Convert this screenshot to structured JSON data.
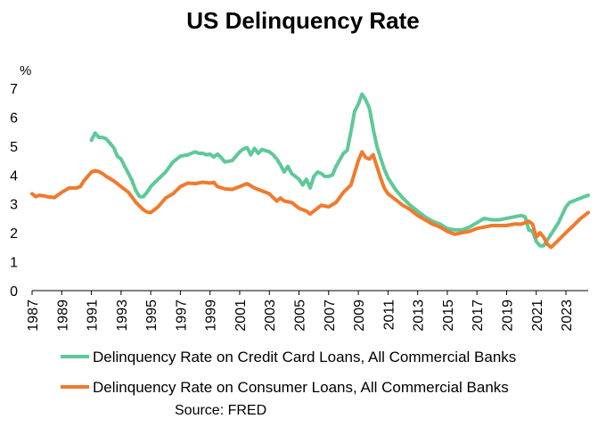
{
  "chart_data": {
    "type": "line",
    "title": "US Delinquency Rate",
    "ylabel": "%",
    "xlabel": "",
    "ylim": [
      0,
      7
    ],
    "xlim": [
      1987,
      2024.5
    ],
    "yticks": [
      "0",
      "1",
      "2",
      "3",
      "4",
      "5",
      "6",
      "7"
    ],
    "xticks": [
      "1987",
      "1989",
      "1991",
      "1993",
      "1995",
      "1997",
      "1999",
      "2001",
      "2003",
      "2005",
      "2007",
      "2009",
      "2011",
      "2013",
      "2015",
      "2017",
      "2019",
      "2021",
      "2023"
    ],
    "grid": false,
    "legend_position": "bottom",
    "series": [
      {
        "name": "Delinquency Rate on Credit Card Loans, All Commercial Banks",
        "color": "#5ec998",
        "x": [
          1991.0,
          1991.25,
          1991.5,
          1991.75,
          1992.0,
          1992.25,
          1992.5,
          1992.75,
          1993.0,
          1993.25,
          1993.5,
          1993.75,
          1994.0,
          1994.25,
          1994.5,
          1994.75,
          1995.0,
          1995.5,
          1996.0,
          1996.5,
          1997.0,
          1997.5,
          1998.0,
          1998.25,
          1998.5,
          1998.75,
          1999.0,
          1999.25,
          1999.5,
          1999.75,
          2000.0,
          2000.5,
          2001.0,
          2001.25,
          2001.5,
          2001.75,
          2002.0,
          2002.25,
          2002.5,
          2003.0,
          2003.25,
          2003.5,
          2003.75,
          2004.0,
          2004.25,
          2004.5,
          2004.75,
          2005.0,
          2005.25,
          2005.5,
          2005.75,
          2006.0,
          2006.25,
          2006.5,
          2006.75,
          2007.0,
          2007.25,
          2007.5,
          2008.0,
          2008.25,
          2008.5,
          2008.75,
          2009.0,
          2009.25,
          2009.5,
          2009.75,
          2010.0,
          2010.25,
          2010.5,
          2010.75,
          2011.0,
          2011.5,
          2012.0,
          2012.5,
          2013.0,
          2013.5,
          2014.0,
          2014.5,
          2015.0,
          2015.5,
          2016.0,
          2016.5,
          2017.0,
          2017.5,
          2018.0,
          2018.5,
          2019.0,
          2019.5,
          2020.0,
          2020.25,
          2020.5,
          2020.75,
          2021.0,
          2021.25,
          2021.5,
          2021.75,
          2022.0,
          2022.5,
          2023.0,
          2023.25,
          2023.5,
          2024.0,
          2024.5
        ],
        "values": [
          5.2,
          5.45,
          5.3,
          5.3,
          5.25,
          5.1,
          4.95,
          4.65,
          4.55,
          4.3,
          4.05,
          3.8,
          3.45,
          3.25,
          3.25,
          3.4,
          3.6,
          3.85,
          4.1,
          4.45,
          4.65,
          4.7,
          4.8,
          4.75,
          4.75,
          4.7,
          4.72,
          4.62,
          4.72,
          4.6,
          4.45,
          4.5,
          4.8,
          4.9,
          4.95,
          4.7,
          4.92,
          4.75,
          4.88,
          4.8,
          4.7,
          4.55,
          4.35,
          4.1,
          4.3,
          4.05,
          3.95,
          3.85,
          3.65,
          3.85,
          3.55,
          3.95,
          4.1,
          4.05,
          3.95,
          3.95,
          4.0,
          4.3,
          4.75,
          4.85,
          5.5,
          6.2,
          6.45,
          6.8,
          6.6,
          6.3,
          5.6,
          5.0,
          4.6,
          4.2,
          3.9,
          3.5,
          3.2,
          2.95,
          2.75,
          2.55,
          2.4,
          2.3,
          2.15,
          2.1,
          2.1,
          2.2,
          2.35,
          2.5,
          2.45,
          2.45,
          2.5,
          2.55,
          2.6,
          2.55,
          2.1,
          2.05,
          1.7,
          1.55,
          1.55,
          1.75,
          1.95,
          2.35,
          2.9,
          3.05,
          3.1,
          3.2,
          3.3
        ]
      },
      {
        "name": "Delinquency Rate on Consumer Loans, All Commercial Banks",
        "color": "#f07a2d",
        "x": [
          1987.0,
          1987.25,
          1987.5,
          1987.75,
          1988.0,
          1988.5,
          1989.0,
          1989.5,
          1990.0,
          1990.25,
          1990.5,
          1990.75,
          1991.0,
          1991.25,
          1991.5,
          1991.75,
          1992.0,
          1992.5,
          1993.0,
          1993.5,
          1994.0,
          1994.5,
          1994.75,
          1995.0,
          1995.5,
          1996.0,
          1996.5,
          1997.0,
          1997.5,
          1998.0,
          1998.5,
          1999.0,
          1999.25,
          1999.5,
          2000.0,
          2000.5,
          2001.0,
          2001.25,
          2001.5,
          2002.0,
          2002.5,
          2003.0,
          2003.5,
          2003.75,
          2004.0,
          2004.5,
          2005.0,
          2005.5,
          2005.75,
          2006.0,
          2006.5,
          2007.0,
          2007.5,
          2008.0,
          2008.5,
          2009.0,
          2009.25,
          2009.5,
          2009.75,
          2010.0,
          2010.25,
          2010.5,
          2010.75,
          2011.0,
          2011.5,
          2012.0,
          2012.5,
          2013.0,
          2013.5,
          2014.0,
          2014.5,
          2015.0,
          2015.5,
          2016.0,
          2016.5,
          2017.0,
          2017.5,
          2018.0,
          2018.5,
          2019.0,
          2019.5,
          2020.0,
          2020.25,
          2020.5,
          2020.75,
          2021.0,
          2021.25,
          2021.5,
          2021.75,
          2022.0,
          2022.5,
          2023.0,
          2023.5,
          2024.0,
          2024.5
        ],
        "values": [
          3.35,
          3.25,
          3.3,
          3.28,
          3.25,
          3.22,
          3.4,
          3.55,
          3.55,
          3.6,
          3.8,
          3.95,
          4.1,
          4.15,
          4.12,
          4.05,
          3.95,
          3.8,
          3.6,
          3.4,
          3.05,
          2.8,
          2.72,
          2.7,
          2.9,
          3.2,
          3.35,
          3.6,
          3.72,
          3.7,
          3.75,
          3.72,
          3.75,
          3.6,
          3.52,
          3.5,
          3.6,
          3.65,
          3.7,
          3.55,
          3.45,
          3.35,
          3.1,
          3.2,
          3.1,
          3.05,
          2.85,
          2.75,
          2.65,
          2.75,
          2.95,
          2.9,
          3.05,
          3.4,
          3.65,
          4.5,
          4.8,
          4.6,
          4.55,
          4.7,
          4.3,
          3.9,
          3.55,
          3.35,
          3.15,
          2.95,
          2.8,
          2.6,
          2.45,
          2.3,
          2.2,
          2.05,
          1.95,
          2.0,
          2.05,
          2.15,
          2.2,
          2.25,
          2.25,
          2.25,
          2.3,
          2.3,
          2.35,
          2.4,
          2.3,
          1.85,
          2.0,
          1.85,
          1.6,
          1.5,
          1.75,
          2.0,
          2.25,
          2.5,
          2.7
        ]
      }
    ],
    "source_label": "Source: FRED"
  }
}
